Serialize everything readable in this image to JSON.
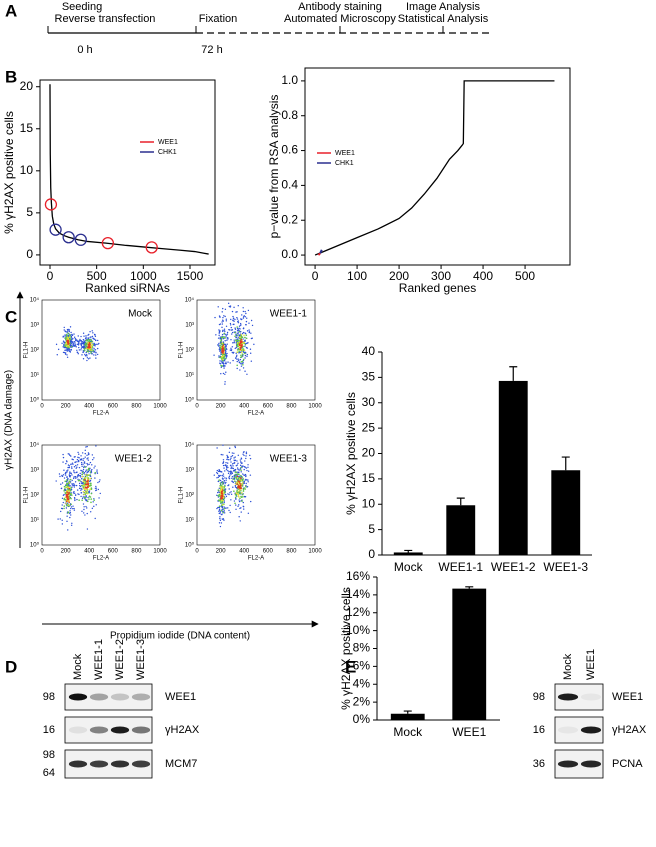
{
  "panel_labels": [
    "A",
    "B",
    "C",
    "D",
    "E"
  ],
  "timeline": {
    "labels": [
      "Seeding",
      "Reverse transfection",
      "Fixation",
      "Antibody staining",
      "Automated Microscopy",
      "Image Analysis",
      "Statistical Analysis"
    ],
    "times": [
      "0 h",
      "72 h"
    ]
  },
  "chart_data": [
    {
      "type": "line",
      "x_label": "Ranked siRNAs",
      "y_label": "% γH2AX positive cells",
      "x": [
        0,
        3,
        8,
        15,
        25,
        40,
        60,
        100,
        150,
        200,
        300,
        400,
        600,
        800,
        1000,
        1200,
        1400,
        1550,
        1650,
        1700
      ],
      "values": [
        20.3,
        12,
        8,
        6.2,
        4.6,
        3.7,
        3.1,
        2.6,
        2.3,
        2.1,
        1.8,
        1.6,
        1.4,
        1.15,
        0.95,
        0.75,
        0.55,
        0.4,
        0.2,
        0.1
      ],
      "color": "#000000",
      "marker": "circle",
      "series": [
        {
          "name": "WEE1",
          "color": "#e8202a",
          "x": [
            10,
            620,
            1090
          ],
          "values": [
            6,
            1.4,
            0.9
          ]
        },
        {
          "name": "CHK1",
          "color": "#2b2f8f",
          "x": [
            60,
            200,
            330
          ],
          "values": [
            3,
            2.1,
            1.8
          ]
        }
      ],
      "xlim": [
        -107,
        1768
      ],
      "ylim": [
        -1.2,
        20.8
      ],
      "xticks": [
        0,
        500,
        1000,
        1500
      ],
      "yticks": [
        0,
        5,
        10,
        15,
        20
      ],
      "frame": true,
      "legend": "upper-right"
    },
    {
      "type": "line",
      "x_label": "Ranked genes",
      "y_label": "p−value from RSA analysis",
      "x": [
        0,
        20,
        50,
        100,
        150,
        200,
        230,
        260,
        290,
        320,
        340,
        350,
        353,
        355,
        570
      ],
      "values": [
        0,
        0.02,
        0.05,
        0.1,
        0.15,
        0.21,
        0.27,
        0.35,
        0.44,
        0.55,
        0.6,
        0.63,
        0.64,
        1,
        1
      ],
      "color": "#000000",
      "marker": "line",
      "series": [
        {
          "name": "WEE1",
          "color": "#e8202a",
          "x": [
            8,
            12
          ],
          "values": [
            0,
            0.01
          ]
        },
        {
          "name": "CHK1",
          "color": "#2b2f8f",
          "x": [
            12,
            16
          ],
          "values": [
            0.01,
            0.03
          ]
        }
      ],
      "xlim": [
        -24,
        607
      ],
      "ylim": [
        -0.057,
        1.074
      ],
      "xticks": [
        0,
        100,
        200,
        300,
        400,
        500
      ],
      "yticks": [
        {
          "value": 0,
          "label": "0.0"
        },
        0.2,
        0.4,
        0.6,
        0.8,
        {
          "value": 1,
          "label": "1.0"
        }
      ],
      "frame": true,
      "legend": "upper-left"
    },
    {
      "type": "bar",
      "y_label": "% γH2AX positive cells",
      "categories": [
        "Mock",
        "WEE1-1",
        "WEE1-2",
        "WEE1-3"
      ],
      "values": [
        0.5,
        9.8,
        34.3,
        16.7
      ],
      "errors": [
        0.4,
        1.4,
        2.8,
        2.6
      ],
      "color": "#000000",
      "ylim": [
        0,
        40
      ],
      "yticks": [
        0,
        5,
        10,
        15,
        20,
        25,
        30,
        35,
        40
      ],
      "frame": false
    },
    {
      "type": "bar",
      "y_label": "% γH2AX positive cells",
      "categories": [
        "Mock",
        "WEE1"
      ],
      "values": [
        0.7,
        14.7
      ],
      "errors": [
        0.3,
        0.2
      ],
      "color": "#000000",
      "ylim": [
        0,
        16
      ],
      "yticks": [
        {
          "value": 0,
          "label": "0%"
        },
        {
          "value": 2,
          "label": "2%"
        },
        {
          "value": 4,
          "label": "4%"
        },
        {
          "value": 6,
          "label": "6%"
        },
        {
          "value": 8,
          "label": "8%"
        },
        {
          "value": 10,
          "label": "10%"
        },
        {
          "value": 12,
          "label": "12%"
        },
        {
          "value": 14,
          "label": "14%"
        },
        {
          "value": 16,
          "label": "16%"
        }
      ],
      "frame": false
    }
  ],
  "flow": {
    "plots": [
      "Mock",
      "WEE1-1",
      "WEE1-2",
      "WEE1-3"
    ],
    "x_axis": "FL2-A",
    "y_axis": "FL1-H",
    "xticks": [
      0,
      200,
      400,
      600,
      800,
      1000
    ],
    "yticks": [
      "10⁰",
      "10¹",
      "10²",
      "10³",
      "10⁴"
    ],
    "y_title": "γH2AX (DNA damage)",
    "x_title": "Propidium iodide (DNA content)"
  },
  "blot_d": {
    "lanes": [
      "Mock",
      "WEE1-1",
      "WEE1-2",
      "WEE1-3"
    ],
    "rows": [
      {
        "label": "WEE1",
        "markers": [
          "98"
        ]
      },
      {
        "label": "γH2AX",
        "markers": [
          "16"
        ]
      },
      {
        "label": "MCM7",
        "markers": [
          "98",
          "64"
        ]
      }
    ]
  },
  "blot_e": {
    "lanes": [
      "Mock",
      "WEE1"
    ],
    "rows": [
      {
        "label": "WEE1",
        "markers": [
          "98"
        ]
      },
      {
        "label": "γH2AX",
        "markers": [
          "16"
        ]
      },
      {
        "label": "PCNA",
        "markers": [
          "36"
        ]
      }
    ]
  }
}
